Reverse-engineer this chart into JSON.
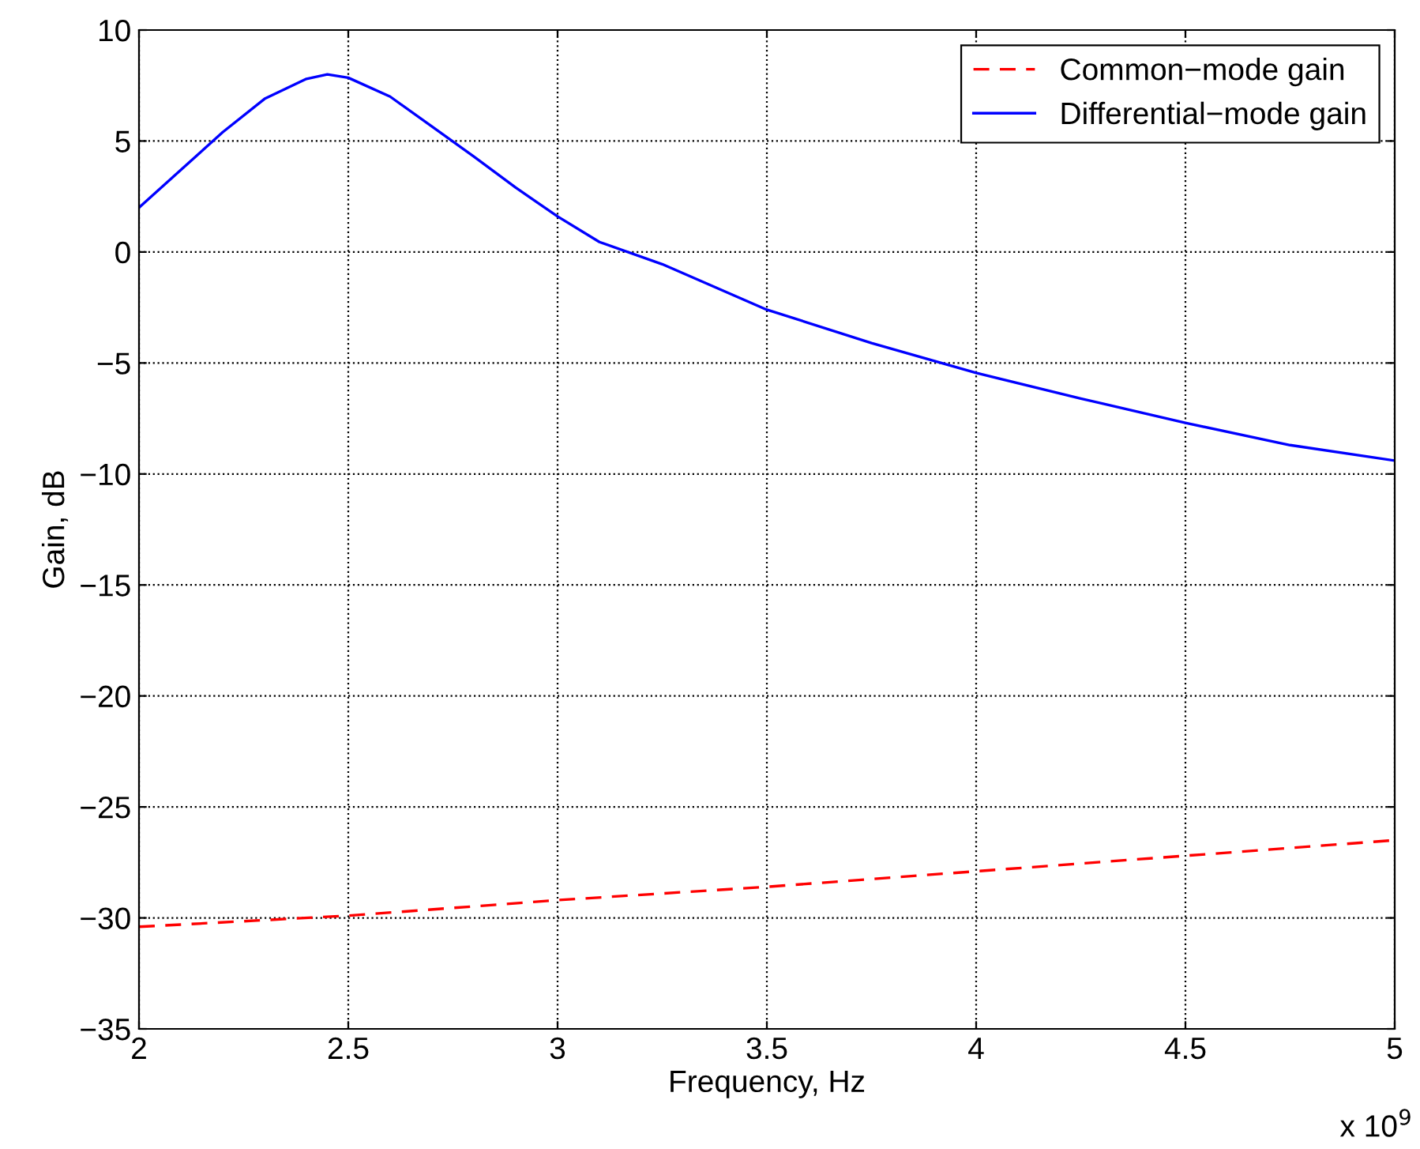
{
  "chart_data": {
    "type": "line",
    "xlabel": "Frequency, Hz",
    "ylabel": "Gain, dB",
    "xlim": [
      2,
      5
    ],
    "ylim": [
      -35,
      10
    ],
    "xticks": [
      2,
      2.5,
      3,
      3.5,
      4,
      4.5,
      5
    ],
    "yticks": [
      {
        "value": 10,
        "label": "10"
      },
      {
        "value": 5,
        "label": "5"
      },
      {
        "value": 0,
        "label": "0"
      },
      {
        "value": -5,
        "label": "−5"
      },
      {
        "value": -10,
        "label": "−10"
      },
      {
        "value": -15,
        "label": "−15"
      },
      {
        "value": -20,
        "label": "−20"
      },
      {
        "value": -25,
        "label": "−25"
      },
      {
        "value": -30,
        "label": "−30"
      },
      {
        "value": -35,
        "label": "−35"
      }
    ],
    "grid": true,
    "legend": "top right",
    "marker": "none",
    "annotations": [
      "x 10$^{9}$"
    ],
    "series": [
      {
        "name": "Common−mode gain",
        "color": "#ff0000",
        "line_style": "dashed",
        "x": [
          2,
          2.5,
          3,
          3.5,
          4,
          4.5,
          5
        ],
        "values": [
          -30.4,
          -29.9,
          -29.2,
          -28.6,
          -27.9,
          -27.2,
          -26.5
        ]
      },
      {
        "name": "Differential−mode gain",
        "color": "#0000ff",
        "line_style": "solid",
        "x": [
          2,
          2.1,
          2.2,
          2.3,
          2.4,
          2.45,
          2.5,
          2.6,
          2.7,
          2.8,
          2.9,
          3,
          3.1,
          3.25,
          3.5,
          3.75,
          4,
          4.25,
          4.5,
          4.75,
          5
        ],
        "values": [
          2.0,
          3.7,
          5.4,
          6.9,
          7.8,
          8.0,
          7.85,
          7.0,
          5.65,
          4.3,
          2.9,
          1.6,
          0.45,
          -0.55,
          -2.6,
          -4.1,
          -5.45,
          -6.6,
          -7.7,
          -8.7,
          -9.4
        ]
      }
    ]
  }
}
